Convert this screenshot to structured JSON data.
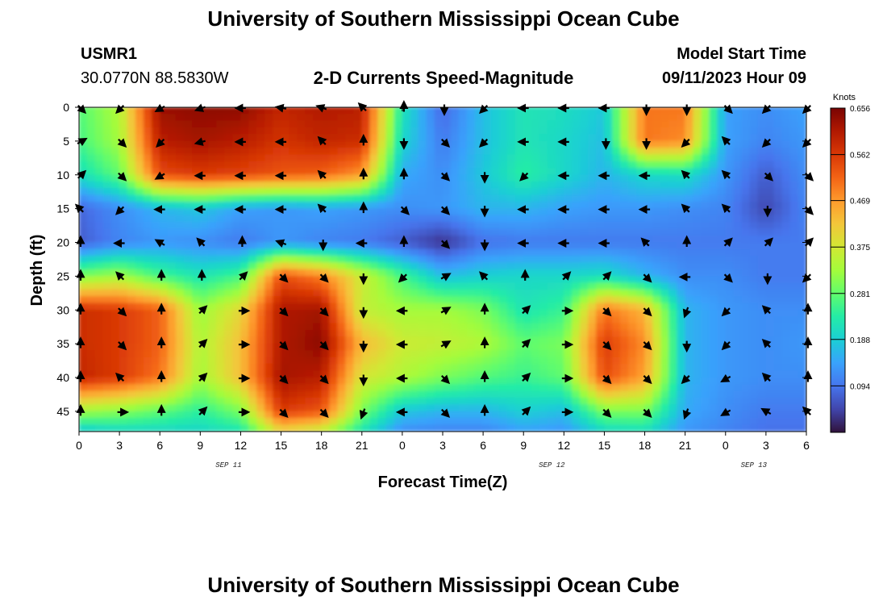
{
  "header": {
    "title": "University of Southern Mississippi Ocean Cube",
    "station": "USMR1",
    "coords": "30.0770N  88.5830W",
    "plot_title": "2-D Currents Speed-Magnitude",
    "model_label": "Model Start Time",
    "model_time": "09/11/2023 Hour 09",
    "footer_title": "University of Southern Mississippi Ocean Cube"
  },
  "colors": {
    "ramp": [
      "#30123b",
      "#4145ab",
      "#4675ed",
      "#39a2fc",
      "#1bcfd4",
      "#24eca6",
      "#61fc6c",
      "#a4fc3b",
      "#d1e834",
      "#f3c63a",
      "#fe9b2d",
      "#f36315",
      "#d93806",
      "#b11901",
      "#7a0403"
    ]
  },
  "chart_data": {
    "type": "heatmap",
    "title": "2-D Currents Speed-Magnitude",
    "xlabel": "Forecast Time(Z)",
    "ylabel": "Depth (ft)",
    "x_tick_labels": [
      "0",
      "3",
      "6",
      "9",
      "12",
      "15",
      "18",
      "21",
      "0",
      "3",
      "6",
      "9",
      "12",
      "15",
      "18",
      "21",
      "0",
      "3",
      "6"
    ],
    "date_labels": [
      {
        "label": "SEP 11",
        "at_tick": 3.7
      },
      {
        "label": "SEP 12",
        "at_tick": 11.7
      },
      {
        "label": "SEP 13",
        "at_tick": 16.7
      }
    ],
    "y_ticks": [
      0,
      5,
      10,
      15,
      20,
      25,
      30,
      35,
      40,
      45
    ],
    "ylim": [
      0,
      48
    ],
    "x_hours": [
      0,
      3,
      6,
      9,
      12,
      15,
      18,
      21,
      24,
      27,
      30,
      33,
      36,
      39,
      42,
      45,
      48,
      51,
      54
    ],
    "colorbar": {
      "unit": "Knots",
      "min": 0.0,
      "max": 0.656,
      "tick_labels": [
        "0.656",
        "0.562",
        "0.469",
        "0.375",
        "0.281",
        "0.188",
        "0.094"
      ]
    },
    "depths_ft": [
      0,
      5,
      10,
      15,
      20,
      25,
      30,
      35,
      40,
      45,
      48
    ],
    "speed_knots": [
      [
        0.27,
        0.34,
        0.63,
        0.64,
        0.64,
        0.59,
        0.61,
        0.6,
        0.22,
        0.08,
        0.17,
        0.22,
        0.21,
        0.18,
        0.5,
        0.5,
        0.14,
        0.12,
        0.14
      ],
      [
        0.26,
        0.33,
        0.6,
        0.62,
        0.6,
        0.57,
        0.59,
        0.58,
        0.2,
        0.1,
        0.17,
        0.22,
        0.2,
        0.17,
        0.5,
        0.48,
        0.14,
        0.11,
        0.13
      ],
      [
        0.21,
        0.28,
        0.54,
        0.56,
        0.55,
        0.53,
        0.52,
        0.47,
        0.15,
        0.12,
        0.18,
        0.24,
        0.2,
        0.16,
        0.2,
        0.21,
        0.13,
        0.07,
        0.12
      ],
      [
        0.08,
        0.12,
        0.16,
        0.18,
        0.14,
        0.13,
        0.14,
        0.13,
        0.12,
        0.13,
        0.16,
        0.16,
        0.14,
        0.13,
        0.13,
        0.12,
        0.11,
        0.05,
        0.11
      ],
      [
        0.07,
        0.11,
        0.13,
        0.12,
        0.1,
        0.13,
        0.11,
        0.1,
        0.07,
        0.03,
        0.09,
        0.1,
        0.1,
        0.1,
        0.1,
        0.1,
        0.1,
        0.1,
        0.1
      ],
      [
        0.3,
        0.33,
        0.26,
        0.22,
        0.26,
        0.54,
        0.49,
        0.37,
        0.26,
        0.17,
        0.19,
        0.2,
        0.2,
        0.21,
        0.16,
        0.12,
        0.12,
        0.1,
        0.1
      ],
      [
        0.58,
        0.56,
        0.52,
        0.32,
        0.4,
        0.61,
        0.62,
        0.36,
        0.33,
        0.33,
        0.3,
        0.22,
        0.25,
        0.5,
        0.44,
        0.16,
        0.13,
        0.12,
        0.12
      ],
      [
        0.58,
        0.56,
        0.52,
        0.34,
        0.43,
        0.61,
        0.64,
        0.44,
        0.37,
        0.36,
        0.34,
        0.28,
        0.3,
        0.56,
        0.48,
        0.16,
        0.13,
        0.12,
        0.13
      ],
      [
        0.59,
        0.56,
        0.5,
        0.33,
        0.43,
        0.62,
        0.6,
        0.38,
        0.34,
        0.3,
        0.27,
        0.25,
        0.28,
        0.54,
        0.46,
        0.16,
        0.13,
        0.12,
        0.12
      ],
      [
        0.33,
        0.31,
        0.28,
        0.24,
        0.3,
        0.56,
        0.53,
        0.3,
        0.18,
        0.16,
        0.16,
        0.19,
        0.17,
        0.3,
        0.3,
        0.15,
        0.12,
        0.1,
        0.1
      ],
      [
        0.18,
        0.2,
        0.2,
        0.2,
        0.22,
        0.4,
        0.36,
        0.22,
        0.12,
        0.11,
        0.11,
        0.14,
        0.13,
        0.2,
        0.21,
        0.13,
        0.11,
        0.09,
        0.09
      ]
    ],
    "arrow_depths_ft": [
      0,
      5,
      10,
      15,
      20,
      25,
      30,
      35,
      40,
      45
    ],
    "arrow_dir_deg": [
      [
        135,
        225,
        240,
        250,
        270,
        280,
        290,
        315,
        0,
        180,
        225,
        270,
        270,
        270,
        180,
        180,
        135,
        225,
        225
      ],
      [
        60,
        135,
        225,
        255,
        270,
        270,
        315,
        0,
        180,
        135,
        225,
        270,
        270,
        180,
        180,
        225,
        315,
        225,
        225
      ],
      [
        45,
        135,
        240,
        270,
        270,
        270,
        315,
        0,
        0,
        135,
        180,
        225,
        270,
        270,
        270,
        315,
        315,
        135,
        135
      ],
      [
        315,
        225,
        270,
        270,
        270,
        270,
        315,
        0,
        135,
        135,
        180,
        270,
        270,
        270,
        270,
        315,
        315,
        180,
        135
      ],
      [
        0,
        270,
        300,
        315,
        0,
        290,
        180,
        270,
        0,
        135,
        180,
        270,
        270,
        270,
        315,
        0,
        45,
        45,
        45
      ],
      [
        0,
        315,
        0,
        0,
        45,
        135,
        135,
        180,
        225,
        60,
        315,
        0,
        45,
        45,
        135,
        270,
        135,
        180,
        225
      ],
      [
        0,
        135,
        0,
        45,
        90,
        135,
        135,
        180,
        270,
        60,
        0,
        45,
        90,
        135,
        135,
        200,
        225,
        315,
        0
      ],
      [
        0,
        135,
        0,
        45,
        90,
        135,
        135,
        180,
        270,
        60,
        0,
        45,
        90,
        135,
        135,
        180,
        225,
        315,
        0
      ],
      [
        0,
        315,
        0,
        45,
        90,
        135,
        135,
        180,
        270,
        135,
        0,
        45,
        90,
        135,
        135,
        225,
        240,
        315,
        0
      ],
      [
        0,
        90,
        0,
        45,
        90,
        135,
        135,
        200,
        270,
        135,
        0,
        45,
        90,
        135,
        135,
        200,
        240,
        300,
        315
      ]
    ]
  }
}
